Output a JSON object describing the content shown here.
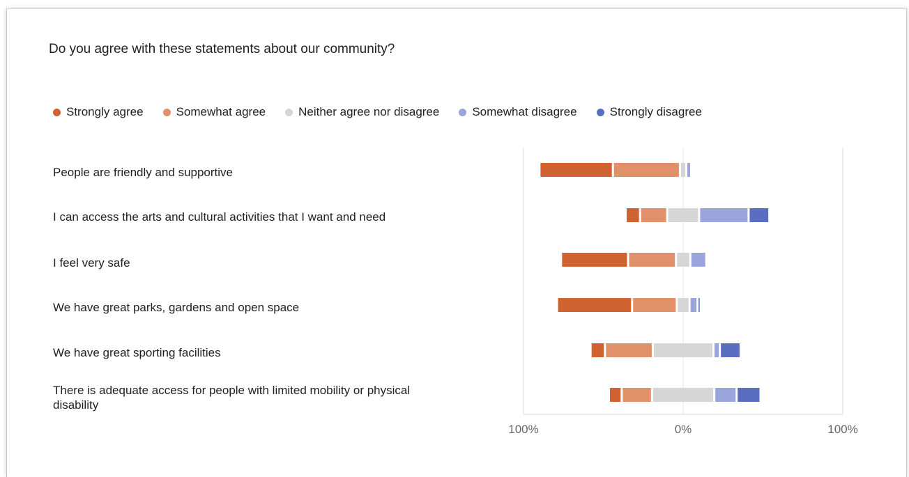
{
  "chart_data": {
    "type": "bar",
    "orientation": "horizontal",
    "stacking": "diverging",
    "title": "Do you agree with these statements about our community?",
    "legend_position": "top",
    "grid": false,
    "xlim": [
      -100,
      100
    ],
    "ticks": [
      {
        "value": -100,
        "label": "100%"
      },
      {
        "value": 0,
        "label": "0%"
      },
      {
        "value": 100,
        "label": "100%"
      }
    ],
    "categories": [
      "People are friendly and supportive",
      "I can access the arts and cultural activities that I want and need",
      "I feel very safe",
      "We have great parks, gardens and open space",
      "We have great sporting facilities",
      "There is adequate access for people with limited mobility or physical disability"
    ],
    "series": [
      {
        "name": "Strongly agree",
        "color": "#D0622F",
        "values": [
          46,
          9,
          42,
          47,
          9,
          8
        ]
      },
      {
        "name": "Somewhat agree",
        "color": "#E2906A",
        "values": [
          42,
          17,
          30,
          28,
          30,
          19
        ]
      },
      {
        "name": "Neither agree nor disagree",
        "color": "#D6D6D6",
        "values": [
          4,
          20,
          9,
          8,
          38,
          39
        ]
      },
      {
        "name": "Somewhat disagree",
        "color": "#9BA5DD",
        "values": [
          3,
          31,
          10,
          5,
          4,
          14
        ]
      },
      {
        "name": "Strongly disagree",
        "color": "#5A6EC1",
        "values": [
          0,
          13,
          0,
          2,
          13,
          15
        ]
      }
    ]
  }
}
